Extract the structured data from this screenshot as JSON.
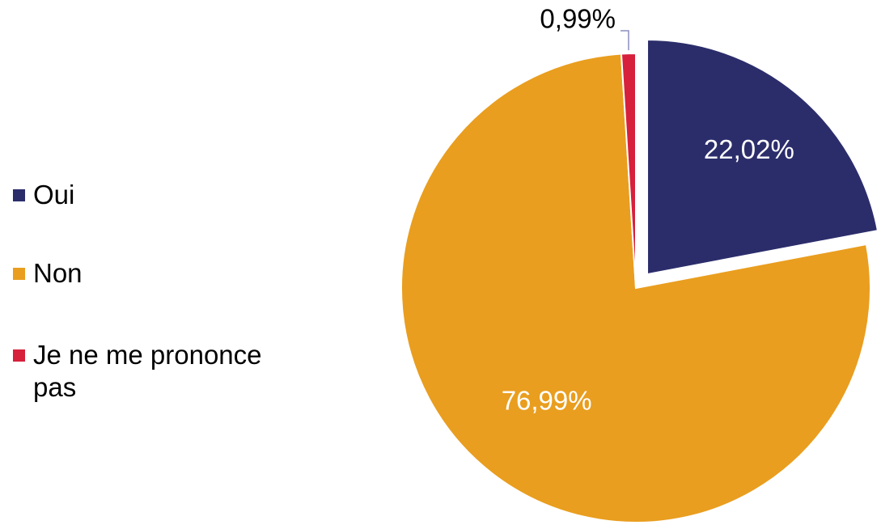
{
  "chart_data": {
    "type": "pie",
    "categories": [
      "Oui",
      "Non",
      "Je ne me prononce pas"
    ],
    "values": [
      22.02,
      76.99,
      0.99
    ],
    "value_labels": [
      "22,02%",
      "76,99%",
      "0,99%"
    ],
    "colors": [
      "#2b2d6b",
      "#e99e1f",
      "#d6203c"
    ],
    "label_colors": [
      "#ffffff",
      "#ffffff",
      "#000000"
    ],
    "start_angle_deg": 0,
    "direction": "clockwise",
    "exploded_slice": "Oui",
    "legend_position": "left",
    "title": ""
  }
}
